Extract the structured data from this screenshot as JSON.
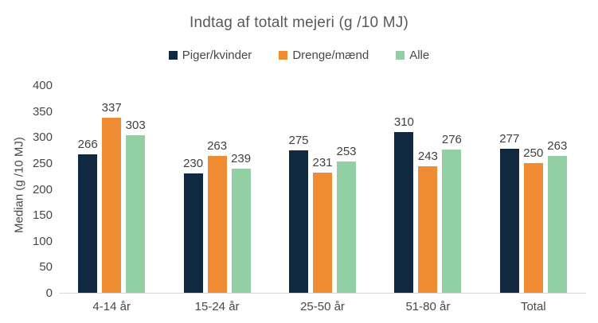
{
  "chart_data": {
    "type": "bar",
    "title": "Indtag af totalt mejeri (g /10 MJ)",
    "xlabel": "",
    "ylabel": "Median (g /10 MJ)",
    "categories": [
      "4-14 år",
      "15-24 år",
      "25-50 år",
      "51-80 år",
      "Total"
    ],
    "series": [
      {
        "name": "Piger/kvinder",
        "color": "#112940",
        "values": [
          266,
          230,
          275,
          310,
          277
        ]
      },
      {
        "name": "Drenge/mænd",
        "color": "#EF8B33",
        "values": [
          337,
          263,
          231,
          243,
          250
        ]
      },
      {
        "name": "Alle",
        "color": "#93CFA5",
        "values": [
          303,
          239,
          253,
          276,
          263
        ]
      }
    ],
    "ylim": [
      0,
      400
    ],
    "yticks": [
      0,
      50,
      100,
      150,
      200,
      250,
      300,
      350,
      400
    ],
    "grid": false,
    "legend_position": "top",
    "data_labels": true
  },
  "colors": {
    "title_text": "#595959",
    "axis_text": "#484848",
    "data_label_text": "#404040",
    "axis_line": "#D9D9D9",
    "background": "#FFFFFF"
  }
}
